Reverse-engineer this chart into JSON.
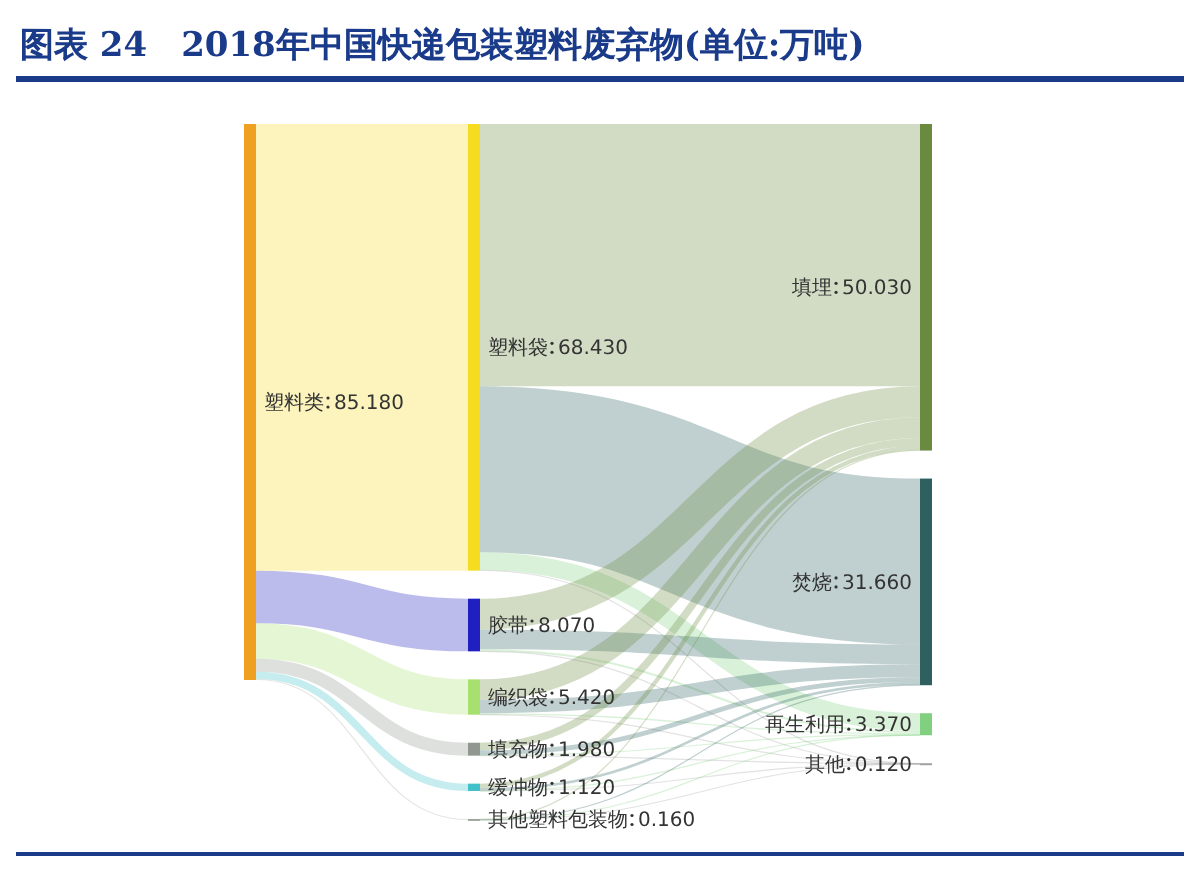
{
  "chart_data": {
    "type": "other",
    "title": "图表 24　2018年中国快递包装塑料废弃物(单位:万吨)",
    "categories": [
      "塑料类",
      "塑料袋",
      "胶带",
      "编织袋",
      "填充物",
      "缓冲物",
      "其他塑料包装物",
      "填埋",
      "焚烧",
      "再生利用",
      "其他"
    ],
    "values": [
      85.18,
      68.43,
      8.07,
      5.42,
      1.98,
      1.12,
      0.16,
      50.03,
      31.66,
      3.37,
      0.12
    ],
    "value_labels": [
      "85.180",
      "68.430",
      "8.070",
      "5.420",
      "1.980",
      "1.120",
      "0.160",
      "50.030",
      "31.660",
      "3.370",
      "0.120"
    ],
    "colors": [
      "#f0a020",
      "#f5dc20",
      "#2020c0",
      "#a8e070",
      "#909890",
      "#40c0c8",
      "#a0a8a0",
      "#6a8a40",
      "#2f6060",
      "#80d080",
      "#a0a0a0"
    ]
  }
}
